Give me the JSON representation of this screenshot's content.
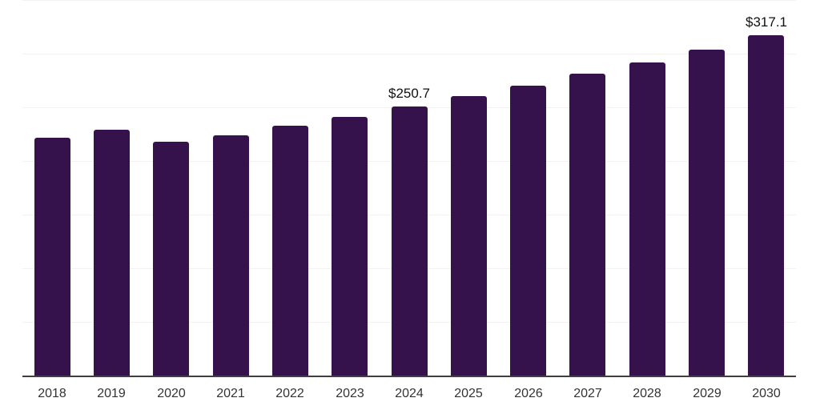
{
  "chart_data": {
    "type": "bar",
    "title": "",
    "xlabel": "",
    "ylabel": "",
    "categories": [
      "2018",
      "2019",
      "2020",
      "2021",
      "2022",
      "2023",
      "2024",
      "2025",
      "2026",
      "2027",
      "2028",
      "2029",
      "2030"
    ],
    "values": [
      222,
      229,
      218,
      224,
      233,
      241,
      250.7,
      260.7,
      270,
      281,
      292,
      304,
      317.1
    ],
    "data_labels": {
      "2024": "$250.7",
      "2030": "$317.1"
    },
    "ylim": [
      0,
      350
    ],
    "gridline_values": [
      0,
      50,
      100,
      150,
      200,
      250,
      300,
      350
    ],
    "grid": "horizontal",
    "legend_position": "none",
    "colors": {
      "bar": "#36124d",
      "grid": "#f2f2f2",
      "axis": "#3f3f3f",
      "data_label": "#111111",
      "tick_label": "#333333",
      "background": "#ffffff"
    }
  }
}
